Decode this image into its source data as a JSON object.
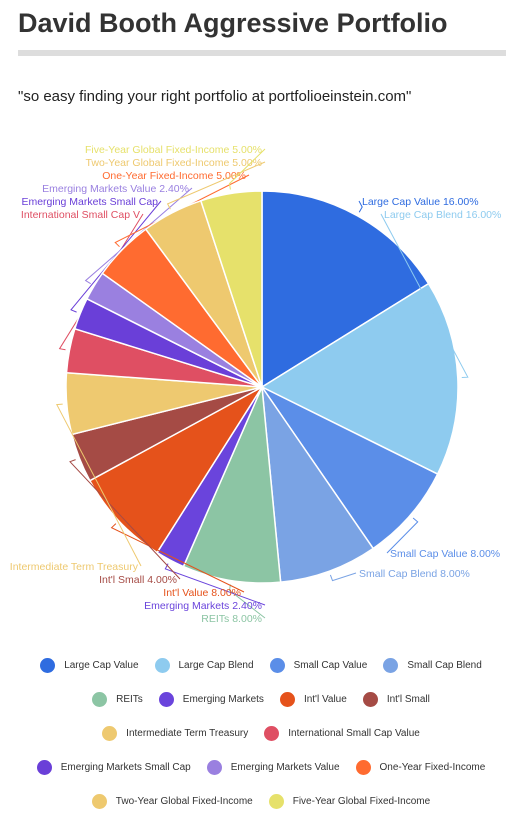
{
  "header": {
    "title": "David Booth Aggressive Portfolio",
    "subtitle": "\"so easy finding your right portfolio at portfolioeinstein.com\""
  },
  "chart_data": {
    "type": "pie",
    "title": "David Booth Aggressive Portfolio",
    "legend_position": "bottom",
    "slices": [
      {
        "name": "Large Cap Value",
        "value": 16.0,
        "label": "Large Cap Value 16.00%",
        "color": "#2f6ce0"
      },
      {
        "name": "Large Cap Blend",
        "value": 16.0,
        "label": "Large Cap Blend 16.00%",
        "color": "#8ecbef"
      },
      {
        "name": "Small Cap Value",
        "value": 8.0,
        "label": "Small Cap Value 8.00%",
        "color": "#5b8ee8"
      },
      {
        "name": "Small Cap Blend",
        "value": 8.0,
        "label": "Small Cap Blend 8.00%",
        "color": "#7aa3e4"
      },
      {
        "name": "REITs",
        "value": 8.0,
        "label": "REITs 8.00%",
        "color": "#8cc5a4"
      },
      {
        "name": "Emerging Markets",
        "value": 2.4,
        "label": "Emerging Markets 2.40%",
        "color": "#6a44dc"
      },
      {
        "name": "Int'l Value",
        "value": 8.0,
        "label": "Int'l Value 8.00%",
        "color": "#e5521b"
      },
      {
        "name": "Int'l Small",
        "value": 4.0,
        "label": "Int'l Small 4.00%",
        "color": "#a54b45"
      },
      {
        "name": "Intermediate Term Treasury",
        "value": 5.0,
        "label": "Intermediate Term Treasury",
        "color": "#eec970"
      },
      {
        "name": "International Small Cap Value",
        "value": 3.6,
        "label": "International Small Cap V",
        "color": "#df4f63"
      },
      {
        "name": "Emerging Markets Small Cap",
        "value": 2.6,
        "label": "Emerging Markets Small Cap",
        "color": "#6a3fd8"
      },
      {
        "name": "Emerging Markets Value",
        "value": 2.4,
        "label": "Emerging Markets Value 2.40%",
        "color": "#9a80e0"
      },
      {
        "name": "One-Year Fixed-Income",
        "value": 5.0,
        "label": "One-Year Fixed-Income 5.00%",
        "color": "#ff6b30"
      },
      {
        "name": "Two-Year Global Fixed-Income",
        "value": 5.0,
        "label": "Two-Year Global Fixed-Income 5.00%",
        "color": "#eec96f"
      },
      {
        "name": "Five-Year Global Fixed-Income",
        "value": 5.0,
        "label": "Five-Year Global Fixed-Income 5.00%",
        "color": "#e6e16b"
      }
    ]
  },
  "legend": {
    "rows": [
      [
        "Large Cap Value",
        "Large Cap Blend",
        "Small Cap Value",
        "Small Cap Blend"
      ],
      [
        "REITs",
        "Emerging Markets",
        "Int'l Value",
        "Int'l Small"
      ],
      [
        "Intermediate Term Treasury",
        "International Small Cap Value"
      ],
      [
        "Emerging Markets Small Cap",
        "Emerging Markets Value",
        "One-Year Fixed-Income"
      ],
      [
        "Two-Year Global Fixed-Income",
        "Five-Year Global Fixed-Income"
      ]
    ]
  }
}
